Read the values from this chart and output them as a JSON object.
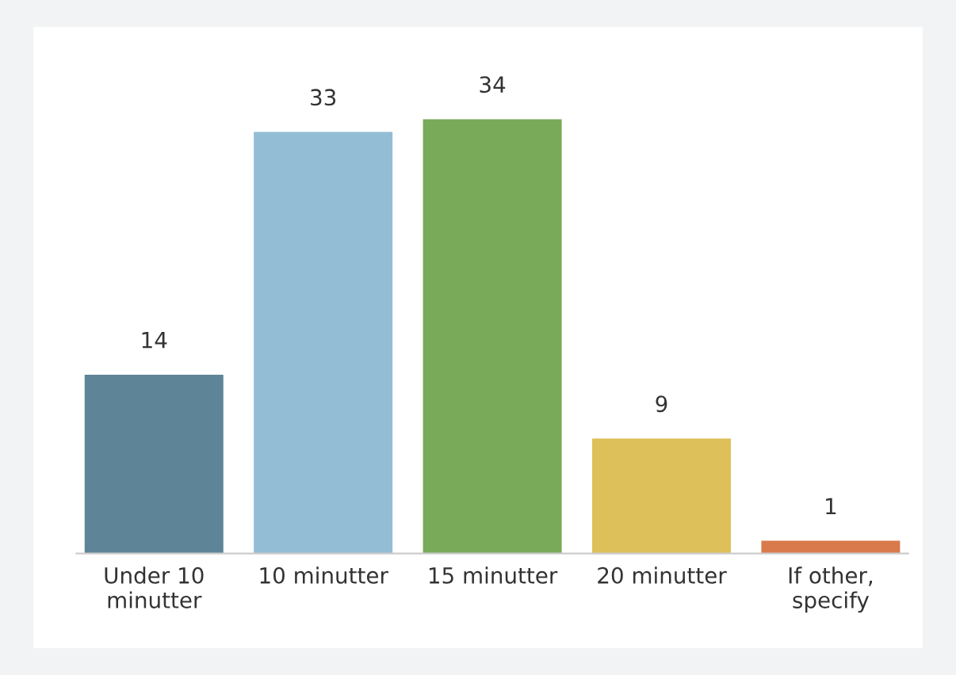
{
  "chart_data": {
    "type": "bar",
    "categories": [
      "Under 10\nminutter",
      "10 minutter",
      "15 minutter",
      "20 minutter",
      "If other,\nspecify"
    ],
    "values": [
      14,
      33,
      34,
      9,
      1
    ],
    "colors": [
      "#5e8498",
      "#92bdd5",
      "#78aa5a",
      "#ddc05a",
      "#d97a4c"
    ],
    "data_labels": true,
    "grid": false,
    "legend": false
  }
}
